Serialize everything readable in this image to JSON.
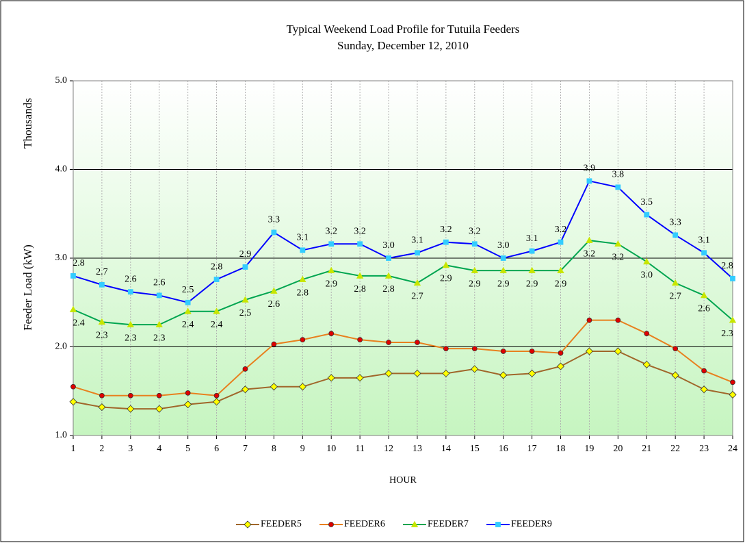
{
  "chart_data": {
    "type": "line",
    "title": "Typical Weekend Load Profile for Tutuila Feeders",
    "subtitle": "Sunday, December 12, 2010",
    "x_label": "HOUR",
    "y_label": "Feeder Load (kW)",
    "y_unit_label": "Thousands",
    "x": [
      1,
      2,
      3,
      4,
      5,
      6,
      7,
      8,
      9,
      10,
      11,
      12,
      13,
      14,
      15,
      16,
      17,
      18,
      19,
      20,
      21,
      22,
      23,
      24
    ],
    "xlim": [
      1,
      24
    ],
    "xticks": [
      1,
      2,
      3,
      4,
      5,
      6,
      7,
      8,
      9,
      10,
      11,
      12,
      13,
      14,
      15,
      16,
      17,
      18,
      19,
      20,
      21,
      22,
      23,
      24
    ],
    "ylim": [
      1,
      5
    ],
    "yticks": [
      {
        "value": 1,
        "label": "1.0"
      },
      {
        "value": 2,
        "label": "2.0"
      },
      {
        "value": 3,
        "label": "3.0"
      },
      {
        "value": 4,
        "label": "4.0"
      },
      {
        "value": 5,
        "label": "5.0"
      }
    ],
    "grid": true,
    "legend": "bottom",
    "series": [
      {
        "name": "FEEDER5",
        "color": "#a0662a",
        "marker": "diamond",
        "marker_color": "#ffff00",
        "values": [
          1.38,
          1.32,
          1.3,
          1.3,
          1.35,
          1.38,
          1.52,
          1.55,
          1.55,
          1.65,
          1.65,
          1.7,
          1.7,
          1.7,
          1.75,
          1.68,
          1.7,
          1.78,
          1.95,
          1.95,
          1.8,
          1.68,
          1.52,
          1.46
        ]
      },
      {
        "name": "FEEDER6",
        "color": "#e8801e",
        "marker": "circle",
        "marker_color": "#e00000",
        "values": [
          1.55,
          1.45,
          1.45,
          1.45,
          1.48,
          1.45,
          1.75,
          2.03,
          2.08,
          2.15,
          2.08,
          2.05,
          2.05,
          1.98,
          1.98,
          1.95,
          1.95,
          1.93,
          2.3,
          2.3,
          2.15,
          1.98,
          1.73,
          1.6
        ]
      },
      {
        "name": "FEEDER7",
        "color": "#00a550",
        "marker": "triangle",
        "marker_color": "#c8e600",
        "values": [
          2.42,
          2.28,
          2.25,
          2.25,
          2.4,
          2.4,
          2.53,
          2.63,
          2.76,
          2.86,
          2.8,
          2.8,
          2.72,
          2.92,
          2.86,
          2.86,
          2.86,
          2.86,
          3.2,
          3.16,
          2.96,
          2.72,
          2.58,
          2.3
        ],
        "value_labels": [
          "2.4",
          "2.3",
          "2.3",
          "2.3",
          "2.4",
          "2.4",
          "2.5",
          "2.6",
          "2.8",
          "2.9",
          "2.8",
          "2.8",
          "2.7",
          "2.9",
          "2.9",
          "2.9",
          "2.9",
          "2.9",
          "3.2",
          "3.2",
          "3.0",
          "2.7",
          "2.6",
          "2.3"
        ]
      },
      {
        "name": "FEEDER9",
        "color": "#0000ff",
        "marker": "square",
        "marker_color": "#33ccff",
        "values": [
          2.8,
          2.7,
          2.62,
          2.58,
          2.5,
          2.76,
          2.9,
          3.29,
          3.09,
          3.16,
          3.16,
          3.0,
          3.06,
          3.18,
          3.16,
          3.0,
          3.08,
          3.18,
          3.87,
          3.8,
          3.49,
          3.26,
          3.06,
          2.77
        ],
        "value_labels": [
          "2.8",
          "2.7",
          "2.6",
          "2.6",
          "2.5",
          "2.8",
          "2.9",
          "3.3",
          "3.1",
          "3.2",
          "3.2",
          "3.0",
          "3.1",
          "3.2",
          "3.2",
          "3.0",
          "3.1",
          "3.2",
          "3.9",
          "3.8",
          "3.5",
          "3.3",
          "3.1",
          "2.8"
        ]
      }
    ]
  }
}
